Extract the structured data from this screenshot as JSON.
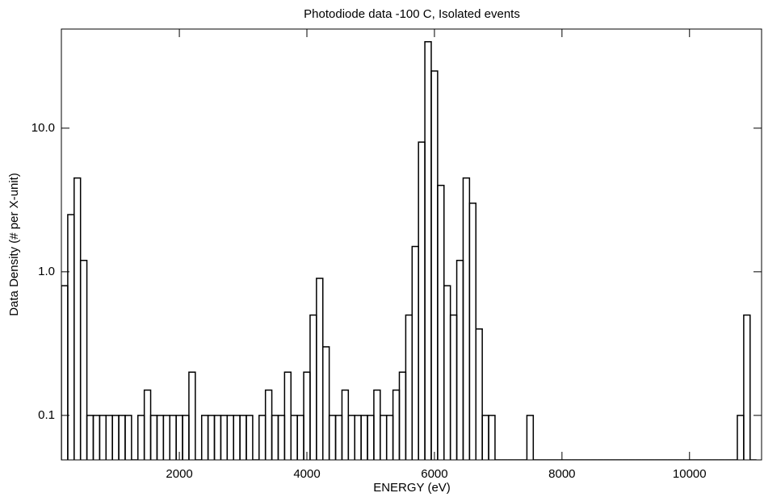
{
  "chart_data": {
    "type": "histogram",
    "title": "Photodiode data -100 C, Isolated events",
    "x_label": "ENERGY (eV)",
    "y_label": "Data Density (# per X-unit)",
    "color": "#000000",
    "y_log": true,
    "xlim": [
      150,
      11130
    ],
    "ylim": [
      0.049,
      49
    ],
    "xticks": [
      2000,
      4000,
      6000,
      8000,
      10000
    ],
    "yticks": [
      0.1,
      {
        "value": 1,
        "label": "1.0"
      },
      {
        "value": 10,
        "label": "10.0"
      }
    ],
    "bins": [
      150,
      250,
      350,
      450,
      550,
      650,
      750,
      850,
      950,
      1050,
      1150,
      1250,
      1350,
      1450,
      1550,
      1650,
      1750,
      1850,
      1950,
      2050,
      2150,
      2250,
      2350,
      2450,
      2550,
      2650,
      2750,
      2850,
      2950,
      3050,
      3150,
      3250,
      3350,
      3450,
      3550,
      3650,
      3750,
      3850,
      3950,
      4050,
      4150,
      4250,
      4350,
      4450,
      4550,
      4650,
      4750,
      4850,
      4950,
      5050,
      5150,
      5250,
      5350,
      5450,
      5550,
      5650,
      5750,
      5850,
      5950,
      6050,
      6150,
      6250,
      6350,
      6450,
      6550,
      6650,
      6750,
      6850,
      6950,
      7050,
      7150,
      7250,
      7350,
      7450,
      7550,
      7650,
      7750,
      7850,
      7950,
      8050,
      8150,
      8250,
      8350,
      8450,
      8550,
      8650,
      8750,
      8850,
      8950,
      9050,
      9150,
      9250,
      9350,
      9450,
      9550,
      9650,
      9750,
      9850,
      9950,
      10050,
      10150,
      10250,
      10350,
      10450,
      10550,
      10650,
      10750,
      10850,
      10950,
      11050
    ],
    "values": [
      0.8,
      2.5,
      4.5,
      1.2,
      0.1,
      0.1,
      0.1,
      0.1,
      0.1,
      0.1,
      0.1,
      0,
      0.1,
      0.15,
      0.1,
      0.1,
      0.1,
      0.1,
      0.1,
      0.1,
      0.2,
      0,
      0.1,
      0.1,
      0.1,
      0.1,
      0.1,
      0.1,
      0.1,
      0.1,
      0,
      0.1,
      0.15,
      0.1,
      0.1,
      0.2,
      0.1,
      0.1,
      0.2,
      0.5,
      0.9,
      0.3,
      0.1,
      0.1,
      0.15,
      0.1,
      0.1,
      0.1,
      0.1,
      0.15,
      0.1,
      0.1,
      0.15,
      0.2,
      0.5,
      1.5,
      8,
      40,
      25,
      4,
      0.8,
      0.5,
      1.2,
      4.5,
      3,
      0.4,
      0.1,
      0.1,
      0,
      0,
      0,
      0,
      0,
      0.1,
      0,
      0,
      0,
      0,
      0,
      0,
      0,
      0,
      0,
      0,
      0,
      0,
      0,
      0,
      0,
      0,
      0,
      0,
      0,
      0,
      0,
      0,
      0,
      0,
      0,
      0,
      0,
      0,
      0,
      0,
      0,
      0,
      0.1,
      0.5,
      0
    ]
  }
}
